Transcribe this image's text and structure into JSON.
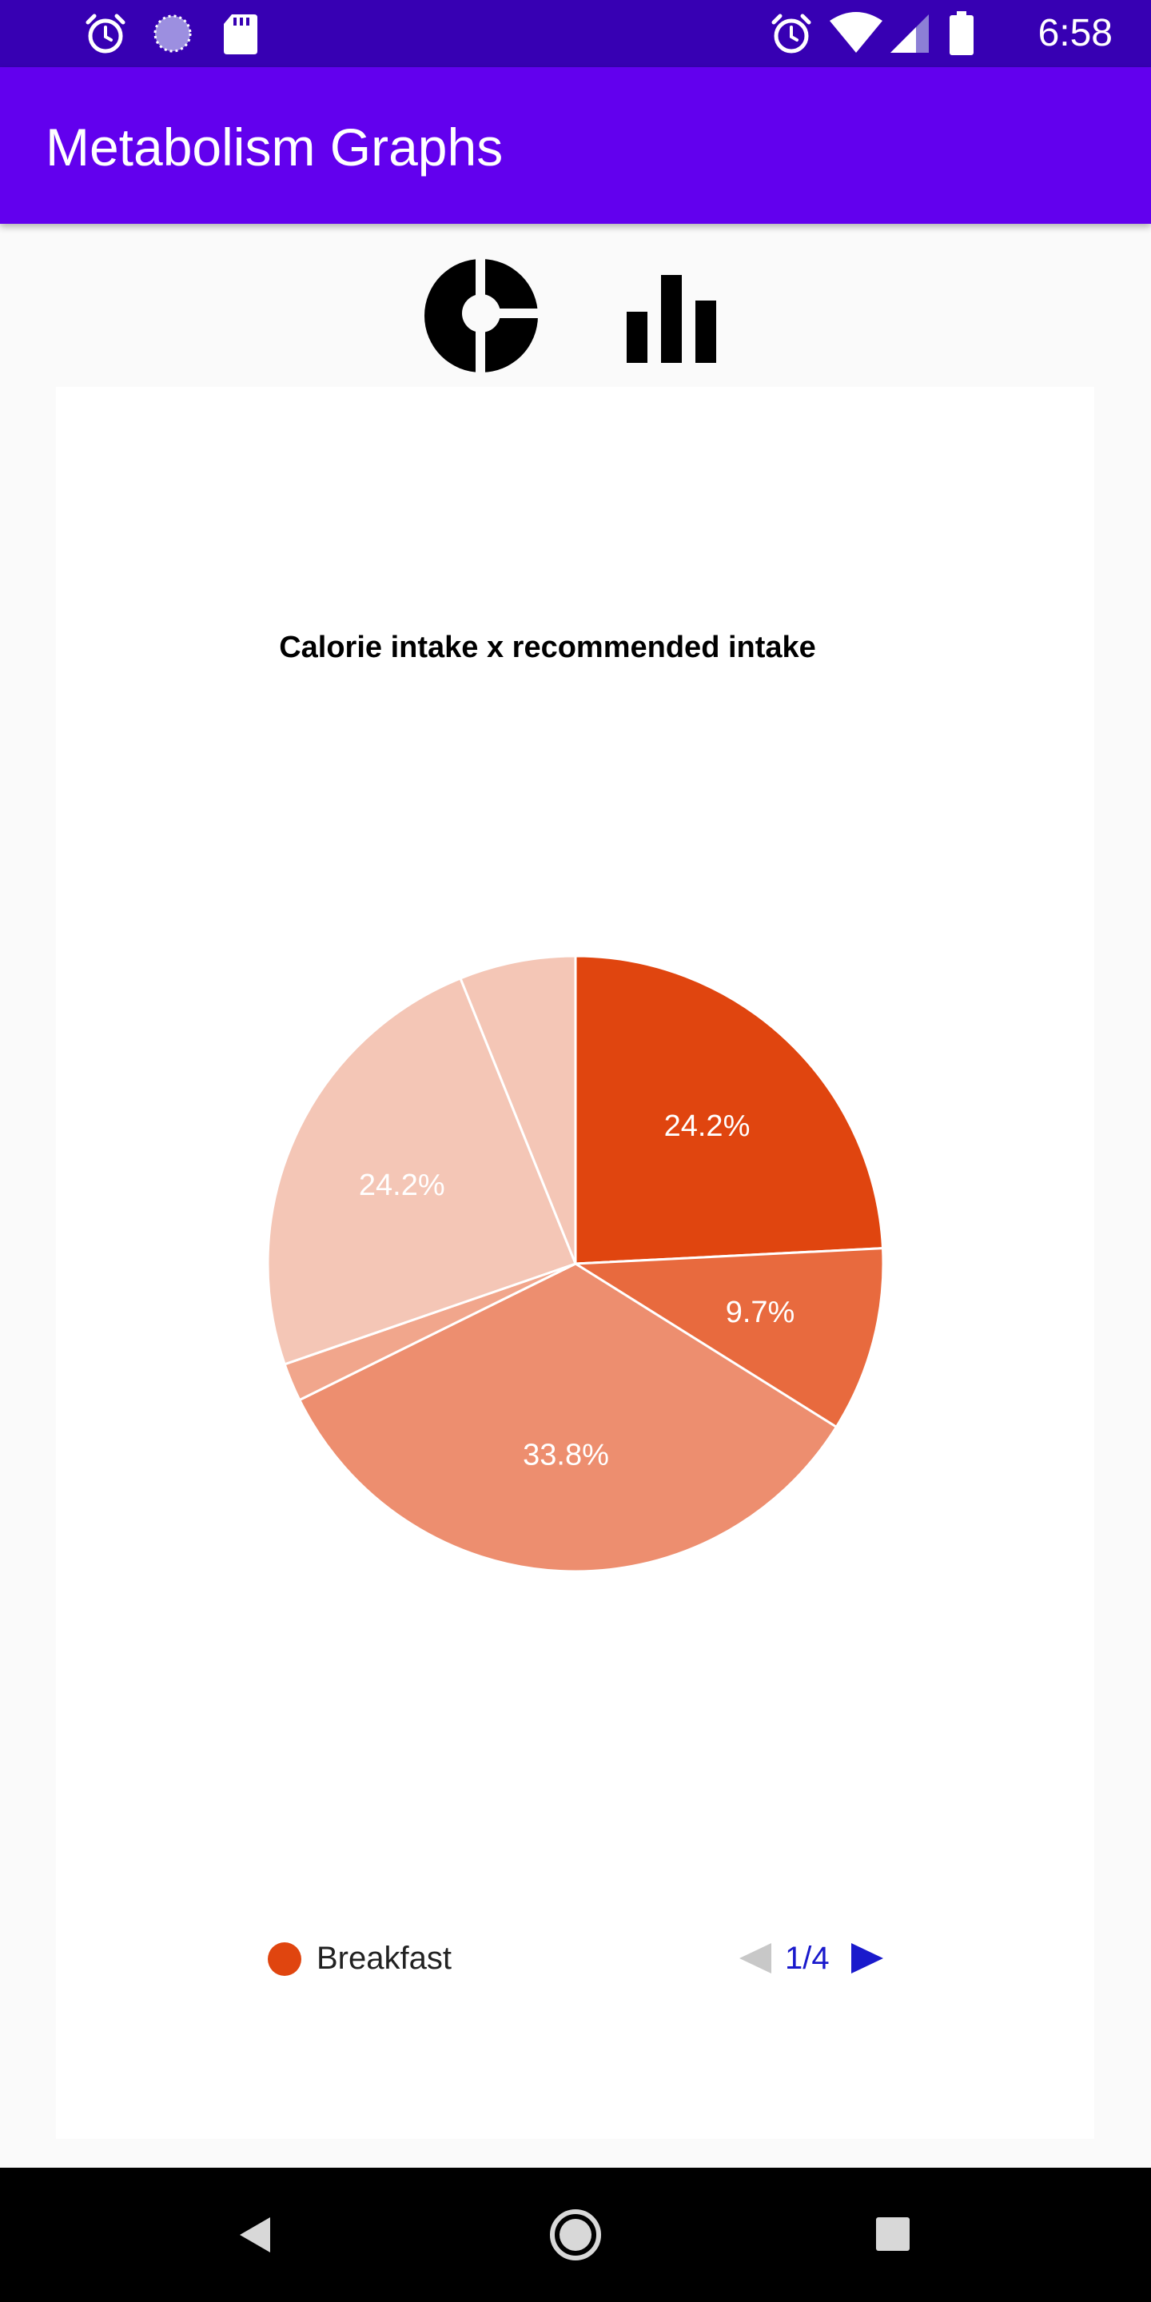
{
  "status_bar": {
    "time": "6:58",
    "left_icons": [
      "alarm-icon",
      "sync-icon",
      "sd-card-icon"
    ],
    "right_icons": [
      "alarm-icon",
      "wifi-icon",
      "signal-icon",
      "battery-icon"
    ]
  },
  "app_bar": {
    "title": "Metabolism Graphs"
  },
  "chart_switch": {
    "icons": [
      "pie-chart-icon",
      "bar-chart-icon"
    ]
  },
  "chart": {
    "title": "Calorie intake x recommended intake",
    "legend": {
      "label": "Breakfast",
      "color": "#e0450f"
    },
    "pager": {
      "text": "1/4",
      "active_color": "#1a1acc",
      "inactive_color": "#c8c8c8"
    }
  },
  "chart_data": {
    "type": "pie",
    "title": "Calorie intake x recommended intake",
    "start_angle_deg": 0,
    "values": [
      24.2,
      9.7,
      33.8,
      2.0,
      24.2,
      6.1
    ],
    "labels": [
      "24.2%",
      "9.7%",
      "33.8%",
      "",
      "24.2%",
      ""
    ],
    "colors": [
      "#e0450f",
      "#e86a3e",
      "#ed8e6f",
      "#f1a68c",
      "#f4c6b6",
      "#f4c6b6"
    ],
    "legend": [
      "Breakfast"
    ],
    "legend_position": "bottom-left"
  },
  "nav_bar": {
    "icons": [
      "back-icon",
      "home-icon",
      "recents-icon"
    ]
  }
}
